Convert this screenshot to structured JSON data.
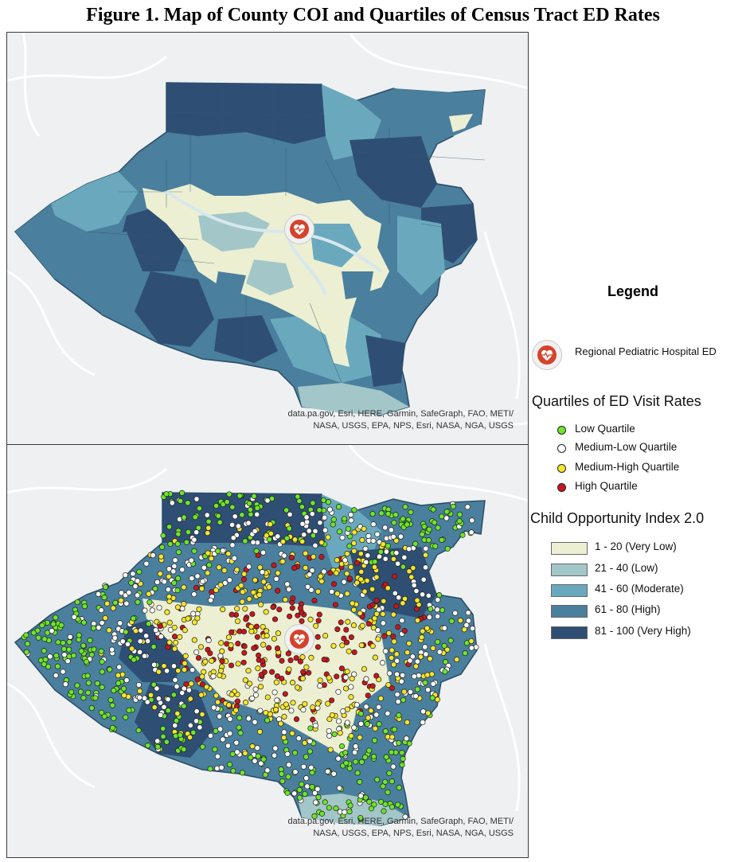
{
  "figure": {
    "title": "Figure 1. Map of County COI and Quartiles of Census Tract ED Rates"
  },
  "maps": {
    "top_attribution_line1": "data.pa.gov, Esri, HERE, Garmin, SafeGraph, FAO, METI/",
    "top_attribution_line2": "NASA, USGS, EPA, NPS, Esri, NASA, NGA, USGS",
    "bottom_attribution_line1": "data.pa.gov, Esri, HERE, Garmin, SafeGraph, FAO, METI/",
    "bottom_attribution_line2": "NASA, USGS, EPA, NPS, Esri, NASA, NGA, USGS"
  },
  "legend": {
    "title": "Legend",
    "hospital_label": "Regional Pediatric Hospital ED",
    "hospital_icon": "heart-pulse-icon",
    "quartiles_title": "Quartiles of ED Visit Rates",
    "quartiles": [
      {
        "label": "Low Quartile",
        "color": "#6ee62a"
      },
      {
        "label": "Medium-Low Quartile",
        "color": "#ffffff"
      },
      {
        "label": "Medium-High Quartile",
        "color": "#f6e62c"
      },
      {
        "label": "High Quartile",
        "color": "#c8161d"
      }
    ],
    "coi_title": "Child Opportunity Index 2.0",
    "coi": [
      {
        "label": "1 - 20 (Very Low)",
        "color": "#ecefd2"
      },
      {
        "label": "21 - 40 (Low)",
        "color": "#a3c6c8"
      },
      {
        "label": "41 - 60 (Moderate)",
        "color": "#6aa9bd"
      },
      {
        "label": "61 - 80 (High)",
        "color": "#4a7f9d"
      },
      {
        "label": "81 - 100 (Very High)",
        "color": "#2e4f73"
      }
    ]
  }
}
